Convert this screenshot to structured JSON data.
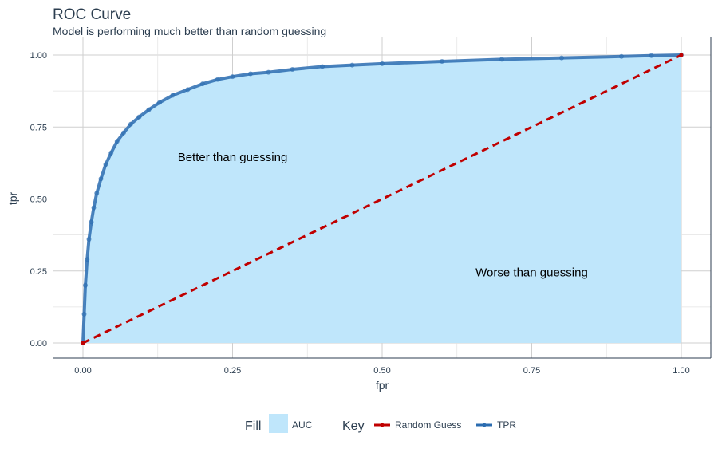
{
  "chart_data": {
    "type": "line",
    "title": "ROC Curve",
    "subtitle": "Model is performing much better than random guessing",
    "xlabel": "fpr",
    "ylabel": "tpr",
    "xlim": [
      0,
      1
    ],
    "ylim": [
      0,
      1
    ],
    "x_ticks": [
      "0.00",
      "0.25",
      "0.50",
      "0.75",
      "1.00"
    ],
    "y_ticks": [
      "0.00",
      "0.25",
      "0.50",
      "0.75",
      "1.00"
    ],
    "grid": true,
    "series": [
      {
        "name": "TPR",
        "color": "#2b6cb0",
        "x": [
          0.0,
          0.002,
          0.004,
          0.007,
          0.01,
          0.014,
          0.018,
          0.023,
          0.03,
          0.038,
          0.047,
          0.057,
          0.068,
          0.08,
          0.094,
          0.11,
          0.128,
          0.15,
          0.175,
          0.2,
          0.225,
          0.25,
          0.28,
          0.31,
          0.35,
          0.4,
          0.45,
          0.5,
          0.6,
          0.7,
          0.8,
          0.9,
          0.95,
          1.0
        ],
        "y": [
          0.0,
          0.1,
          0.2,
          0.29,
          0.36,
          0.42,
          0.47,
          0.52,
          0.57,
          0.62,
          0.66,
          0.7,
          0.73,
          0.76,
          0.785,
          0.81,
          0.835,
          0.86,
          0.88,
          0.9,
          0.915,
          0.925,
          0.935,
          0.94,
          0.95,
          0.96,
          0.965,
          0.97,
          0.978,
          0.985,
          0.99,
          0.995,
          0.998,
          1.0
        ]
      },
      {
        "name": "Random Guess",
        "color": "#c00000",
        "x": [
          0,
          1
        ],
        "y": [
          0,
          1
        ]
      }
    ],
    "fill": {
      "name": "AUC",
      "color": "#bfe6fb"
    },
    "annotations": [
      {
        "text": "Better than guessing",
        "x": 0.25,
        "y": 0.645
      },
      {
        "text": "Worse than guessing",
        "x": 0.75,
        "y": 0.245
      }
    ],
    "legend": {
      "placement": "bottom",
      "fill_title": "Fill",
      "key_title": "Key"
    }
  }
}
